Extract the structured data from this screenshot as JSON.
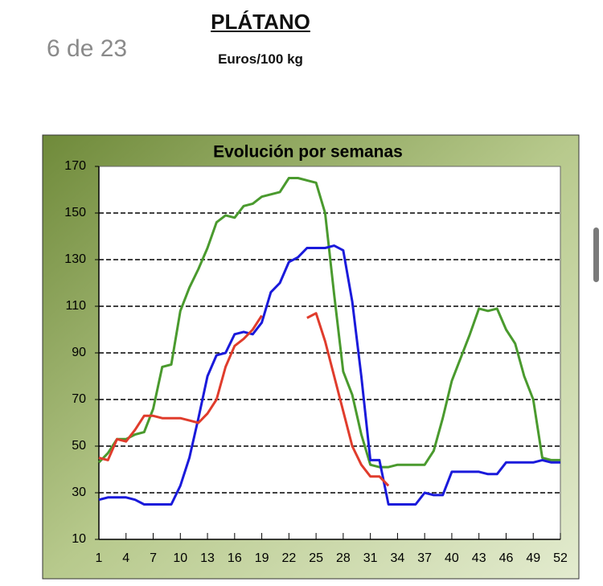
{
  "page_indicator": "6 de 23",
  "title": "PLÁTANO",
  "subtitle": "Euros/100 kg",
  "chart_data": {
    "type": "line",
    "title": "Evolución por semanas",
    "x": [
      1,
      2,
      3,
      4,
      5,
      6,
      7,
      8,
      9,
      10,
      11,
      12,
      13,
      14,
      15,
      16,
      17,
      18,
      19,
      20,
      21,
      22,
      23,
      24,
      25,
      26,
      27,
      28,
      29,
      30,
      31,
      32,
      33,
      34,
      35,
      36,
      37,
      38,
      39,
      40,
      41,
      42,
      43,
      44,
      45,
      46,
      47,
      48,
      49,
      50,
      51,
      52
    ],
    "xlim": [
      1,
      52
    ],
    "xticks": [
      1,
      4,
      7,
      10,
      13,
      16,
      19,
      22,
      25,
      28,
      31,
      34,
      37,
      40,
      43,
      46,
      49,
      52
    ],
    "ylim": [
      10,
      170
    ],
    "yticks": [
      10,
      30,
      50,
      70,
      90,
      110,
      130,
      150,
      170
    ],
    "grid": true,
    "series": [
      {
        "color": "#4a9a2e",
        "values": [
          43,
          47,
          53,
          53,
          55,
          56,
          66,
          84,
          85,
          108,
          118,
          126,
          135,
          146,
          149,
          148,
          153,
          154,
          157,
          158,
          159,
          165,
          165,
          164,
          163,
          150,
          115,
          82,
          72,
          55,
          42,
          41,
          41,
          42,
          42,
          42,
          42,
          48,
          62,
          78,
          88,
          98,
          109,
          108,
          109,
          100,
          94,
          80,
          70,
          45,
          44,
          44
        ]
      },
      {
        "color": "#1a1adb",
        "values": [
          27,
          28,
          28,
          28,
          27,
          25,
          25,
          25,
          25,
          33,
          45,
          62,
          80,
          89,
          90,
          98,
          99,
          98,
          103,
          116,
          120,
          129,
          131,
          135,
          135,
          135,
          136,
          134,
          112,
          80,
          44,
          44,
          25,
          25,
          25,
          25,
          30,
          29,
          29,
          39,
          39,
          39,
          39,
          38,
          38,
          43,
          43,
          43,
          43,
          44,
          43,
          43
        ]
      },
      {
        "color": "#e03c2c",
        "values": [
          45,
          44,
          53,
          52,
          57,
          63,
          63,
          62,
          62,
          62,
          61,
          60,
          64,
          70,
          84,
          93,
          96,
          100,
          106,
          null,
          null,
          null,
          null,
          105,
          107,
          95,
          80,
          65,
          50,
          42,
          37,
          37,
          33,
          null,
          null,
          null,
          null,
          null,
          null,
          null,
          null,
          null,
          null,
          null,
          null,
          null,
          null,
          null,
          null,
          null,
          null,
          null
        ]
      }
    ]
  }
}
